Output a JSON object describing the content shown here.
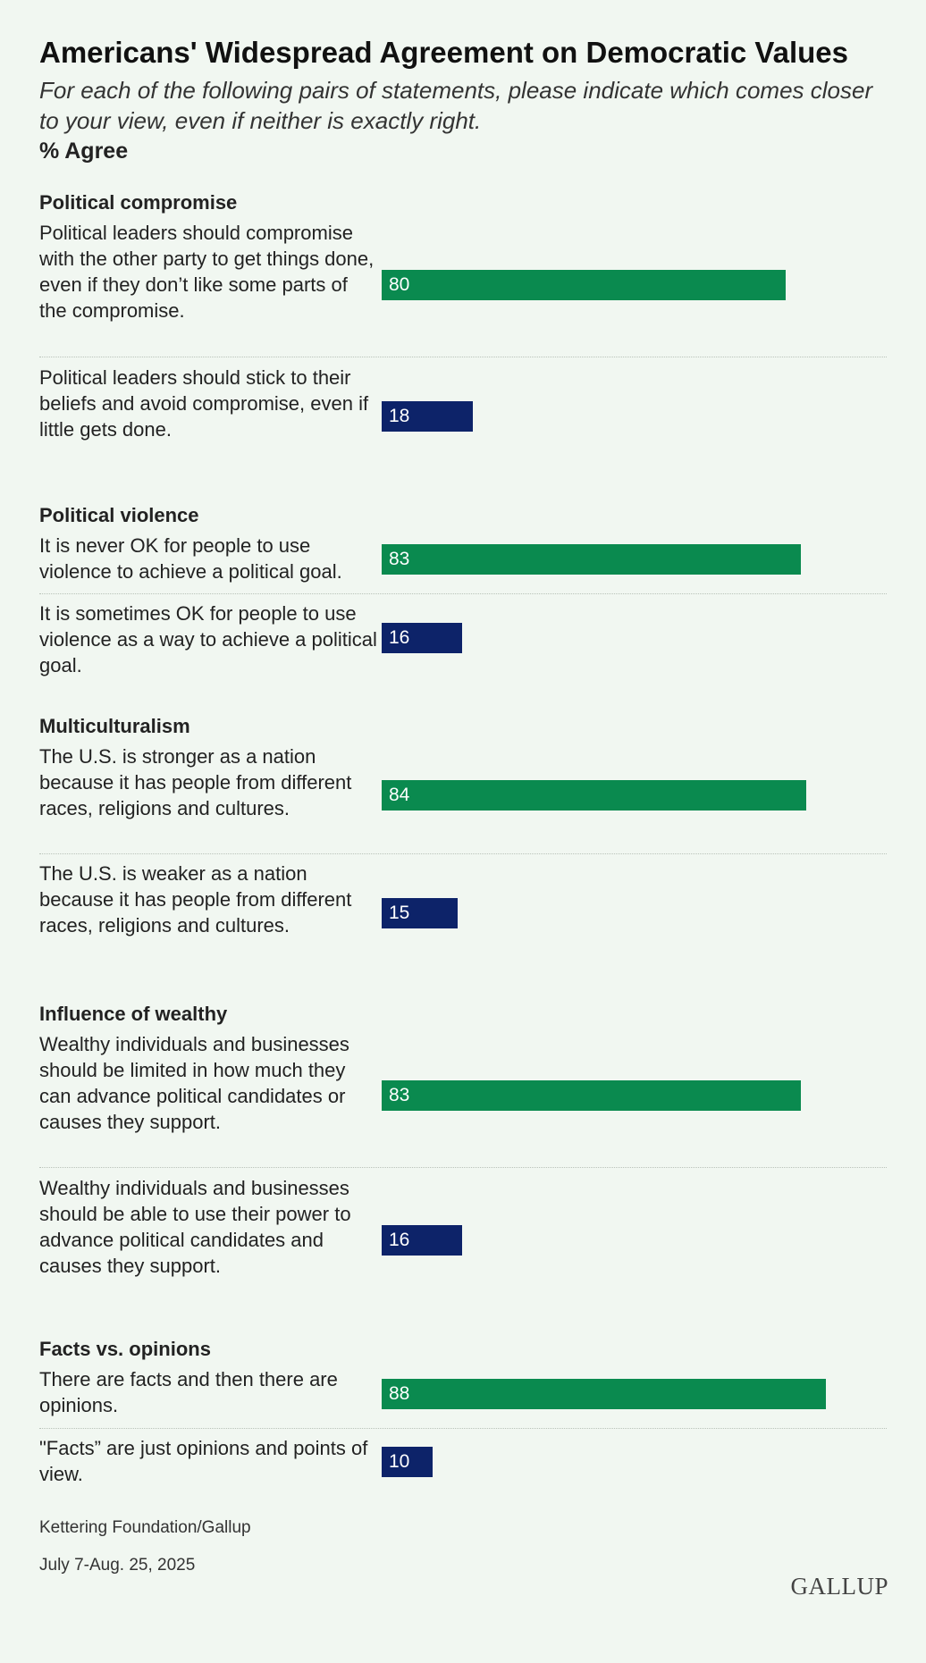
{
  "header": {
    "title": "Americans' Widespread Agreement on Democratic Values",
    "subtitle": "For each of the following pairs of statements, please indicate which comes closer to your view, even if neither is exactly right.",
    "unit": "% Agree"
  },
  "footer": {
    "source": "Kettering Foundation/Gallup",
    "date": "July 7-Aug. 25, 2025",
    "logo": "GALLUP"
  },
  "colors": {
    "agree_primary": "#0a8a4f",
    "agree_secondary": "#0d2369",
    "background": "#f1f7f1"
  },
  "chart_data": {
    "type": "bar",
    "orientation": "horizontal",
    "xlim": [
      0,
      100
    ],
    "grid": false,
    "groups": [
      {
        "title": "Political compromise",
        "items": [
          {
            "label": "Political leaders should compromise with the other party to get things done, even if they don’t like some parts of the compromise.",
            "value": 80
          },
          {
            "label": "Political leaders should stick to their beliefs and avoid compromise, even if little gets done.",
            "value": 18
          }
        ]
      },
      {
        "title": "Political violence",
        "items": [
          {
            "label": "It is never OK for people to use violence to achieve a political goal.",
            "value": 83
          },
          {
            "label": "It is sometimes OK for people to use violence as a way to achieve a political goal.",
            "value": 16
          }
        ]
      },
      {
        "title": "Multiculturalism",
        "items": [
          {
            "label": "The U.S. is stronger as a nation because it has people from different races, religions and cultures.",
            "value": 84
          },
          {
            "label": "The U.S. is weaker as a nation because it has people from different races, religions and cultures.",
            "value": 15
          }
        ]
      },
      {
        "title": "Influence of wealthy",
        "items": [
          {
            "label": "Wealthy individuals and businesses should be limited in how much they can advance political candidates or causes they support.",
            "value": 83
          },
          {
            "label": "Wealthy individuals and businesses should be able to use their power to advance political candidates and causes they support.",
            "value": 16
          }
        ]
      },
      {
        "title": "Facts vs. opinions",
        "items": [
          {
            "label": "There are facts and then there are opinions.",
            "value": 88
          },
          {
            "label": "\"Facts” are just opinions and points of view.",
            "value": 10
          }
        ]
      }
    ]
  }
}
